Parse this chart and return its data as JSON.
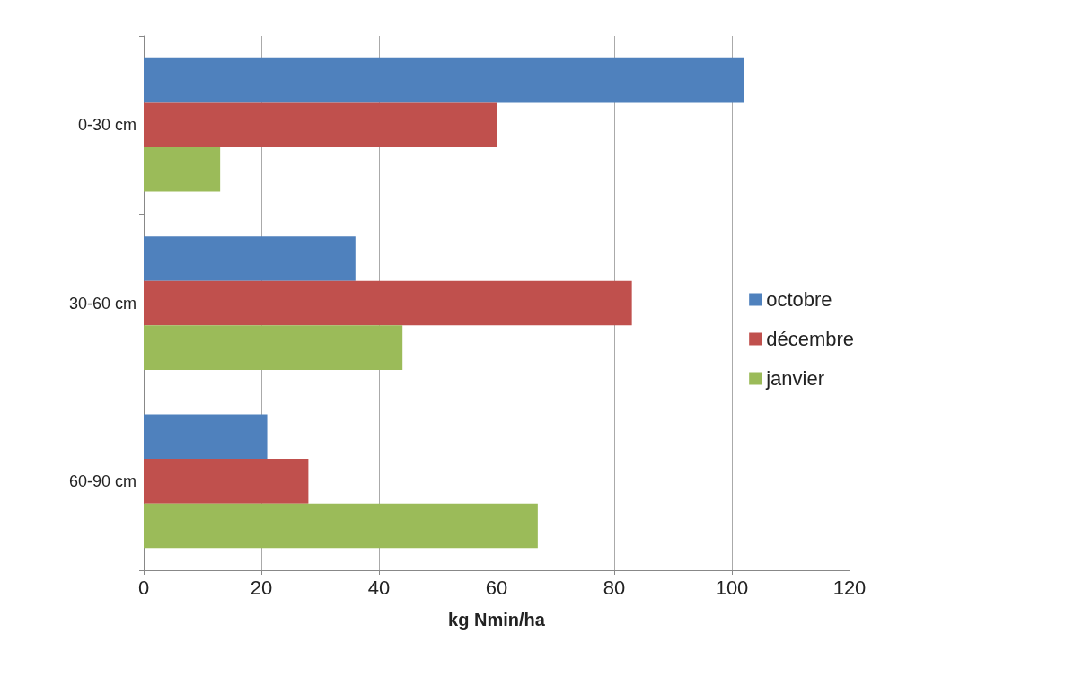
{
  "chart_data": {
    "type": "bar",
    "orientation": "horizontal",
    "categories": [
      "0-30 cm",
      "30-60 cm",
      "60-90 cm"
    ],
    "series": [
      {
        "name": "octobre",
        "color": "#4f81bd",
        "values": [
          102,
          36,
          21
        ]
      },
      {
        "name": "décembre",
        "color": "#c0504d",
        "values": [
          60,
          83,
          28
        ]
      },
      {
        "name": "janvier",
        "color": "#9bbb59",
        "values": [
          13,
          44,
          67
        ]
      }
    ],
    "xlabel": "kg Nmin/ha",
    "xlim": [
      0,
      120
    ],
    "xticks": [
      0,
      20,
      40,
      60,
      80,
      100,
      120
    ],
    "grid": "x",
    "legend": "right"
  }
}
